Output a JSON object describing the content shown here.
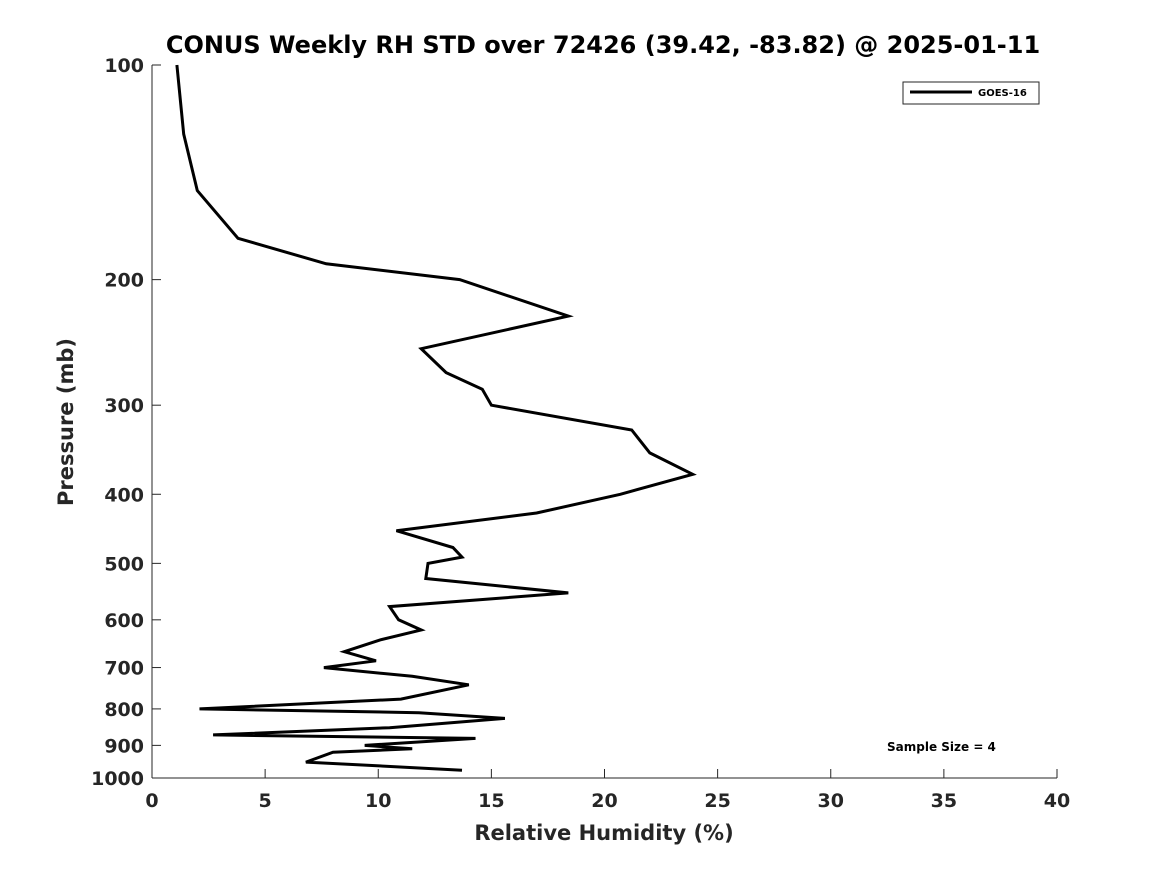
{
  "chart_data": {
    "type": "line",
    "title": "CONUS Weekly RH STD over 72426 (39.42, -83.82) @ 2025-01-11",
    "xlabel": "Relative Humidity (%)",
    "ylabel": "Pressure (mb)",
    "xlim": [
      0,
      40
    ],
    "ylim": [
      100,
      1000
    ],
    "y_scale": "log",
    "y_reversed": true,
    "x_ticks": [
      0,
      5,
      10,
      15,
      20,
      25,
      30,
      35,
      40
    ],
    "y_ticks": [
      100,
      200,
      300,
      400,
      500,
      600,
      700,
      800,
      900,
      1000
    ],
    "grid": false,
    "legend_position": "top-right",
    "annotation": "Sample Size = 4",
    "series": [
      {
        "name": "GOES-16",
        "color": "#000000",
        "points": [
          [
            1.1,
            100
          ],
          [
            1.4,
            125
          ],
          [
            2.0,
            150
          ],
          [
            3.8,
            175
          ],
          [
            7.7,
            190
          ],
          [
            13.6,
            200
          ],
          [
            18.4,
            225
          ],
          [
            11.9,
            250
          ],
          [
            13.0,
            270
          ],
          [
            14.6,
            285
          ],
          [
            15.0,
            300
          ],
          [
            21.2,
            325
          ],
          [
            22.0,
            350
          ],
          [
            23.9,
            375
          ],
          [
            20.7,
            400
          ],
          [
            17.0,
            425
          ],
          [
            10.8,
            450
          ],
          [
            13.3,
            475
          ],
          [
            13.7,
            490
          ],
          [
            12.2,
            500
          ],
          [
            12.1,
            525
          ],
          [
            18.4,
            550
          ],
          [
            10.5,
            575
          ],
          [
            10.9,
            600
          ],
          [
            11.9,
            620
          ],
          [
            10.1,
            640
          ],
          [
            8.5,
            665
          ],
          [
            9.9,
            685
          ],
          [
            7.6,
            700
          ],
          [
            11.5,
            720
          ],
          [
            14.0,
            740
          ],
          [
            11.0,
            775
          ],
          [
            2.1,
            800
          ],
          [
            11.8,
            810
          ],
          [
            15.6,
            825
          ],
          [
            10.5,
            850
          ],
          [
            2.7,
            870
          ],
          [
            14.3,
            880
          ],
          [
            9.4,
            900
          ],
          [
            11.5,
            910
          ],
          [
            8.0,
            920
          ],
          [
            6.8,
            950
          ],
          [
            13.7,
            975
          ]
        ]
      }
    ]
  }
}
